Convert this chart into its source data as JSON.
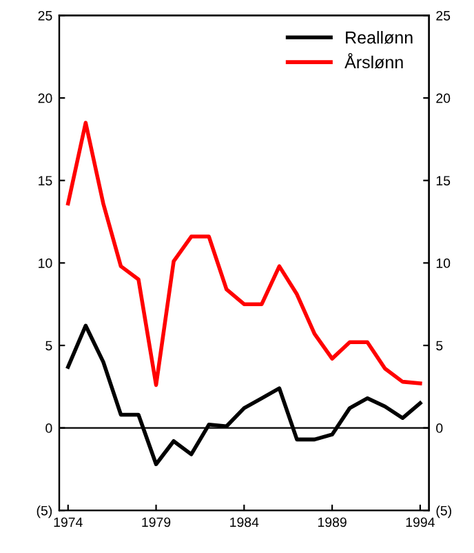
{
  "chart_data": {
    "type": "line",
    "x": [
      1974,
      1975,
      1976,
      1977,
      1978,
      1979,
      1980,
      1981,
      1982,
      1983,
      1984,
      1985,
      1986,
      1987,
      1988,
      1989,
      1990,
      1991,
      1992,
      1993,
      1994
    ],
    "series": [
      {
        "name": "Reallønn",
        "color": "#000000",
        "values": [
          3.7,
          6.2,
          4.0,
          0.8,
          0.8,
          -2.2,
          -0.8,
          -1.6,
          0.2,
          0.1,
          1.2,
          1.8,
          2.4,
          -0.7,
          -0.7,
          -0.4,
          1.2,
          1.8,
          1.3,
          0.6,
          1.5
        ]
      },
      {
        "name": "Årslønn",
        "color": "#ff0000",
        "values": [
          13.6,
          18.5,
          13.6,
          9.8,
          9.0,
          2.6,
          10.1,
          11.6,
          11.6,
          8.4,
          7.5,
          7.5,
          9.8,
          8.1,
          5.7,
          4.2,
          5.2,
          5.2,
          3.6,
          2.8,
          2.7
        ]
      }
    ],
    "xlim": [
      1973.5,
      1994.5
    ],
    "xticks": [
      1974,
      1979,
      1984,
      1989,
      1994
    ],
    "ylim": [
      -5,
      25
    ],
    "yticks": [
      {
        "value": -5,
        "label": "(5)"
      },
      0,
      5,
      10,
      15,
      20,
      25
    ],
    "y2lim": [
      -5,
      25
    ],
    "y2ticks": [
      {
        "value": -5,
        "label": "(5)"
      },
      0,
      5,
      10,
      15,
      20,
      25
    ],
    "ref_lines": [
      {
        "axis": "y",
        "value": 0,
        "label": null,
        "color": "#000000"
      }
    ],
    "legend": "top right",
    "grid": false,
    "marker": "none",
    "line_style": "solid"
  }
}
